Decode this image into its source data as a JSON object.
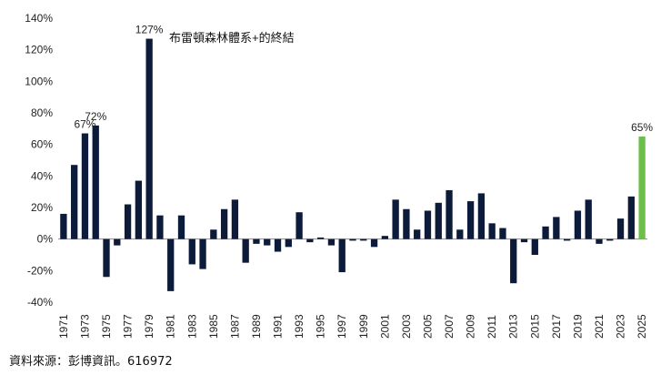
{
  "chart_data": {
    "type": "bar",
    "x": [
      "1971",
      "1972",
      "1973",
      "1974",
      "1975",
      "1976",
      "1977",
      "1978",
      "1979",
      "1980",
      "1981",
      "1982",
      "1983",
      "1984",
      "1985",
      "1986",
      "1987",
      "1988",
      "1989",
      "1990",
      "1991",
      "1992",
      "1993",
      "1994",
      "1995",
      "1996",
      "1997",
      "1998",
      "1999",
      "2000",
      "2001",
      "2002",
      "2003",
      "2004",
      "2005",
      "2006",
      "2007",
      "2008",
      "2009",
      "2010",
      "2011",
      "2012",
      "2013",
      "2014",
      "2015",
      "2016",
      "2017",
      "2018",
      "2019",
      "2020",
      "2021",
      "2022",
      "2023",
      "2024",
      "2025"
    ],
    "x_tick_labels": [
      "1971",
      "1973",
      "1975",
      "1977",
      "1979",
      "1981",
      "1983",
      "1985",
      "1987",
      "1989",
      "1991",
      "1993",
      "1995",
      "1997",
      "1999",
      "2001",
      "2003",
      "2005",
      "2007",
      "2009",
      "2011",
      "2013",
      "2015",
      "2017",
      "2019",
      "2021",
      "2023",
      "2025"
    ],
    "values": [
      16,
      47,
      67,
      72,
      -24,
      -4,
      22,
      37,
      127,
      15,
      -33,
      15,
      -16,
      -19,
      6,
      19,
      25,
      -15,
      -3,
      -4,
      -8,
      -5,
      17,
      -2,
      1,
      -4,
      -21,
      -1,
      -1,
      -5,
      2,
      25,
      19,
      6,
      18,
      23,
      31,
      6,
      24,
      29,
      10,
      7,
      -28,
      -2,
      -10,
      8,
      14,
      -1,
      18,
      25,
      -3,
      -1,
      13,
      27,
      65
    ],
    "ylim": [
      -40,
      140
    ],
    "yticks": [
      -40,
      -20,
      0,
      20,
      40,
      60,
      80,
      100,
      120,
      140
    ],
    "ytick_format": "%",
    "gridlines": false,
    "data_labels": [
      {
        "year": "1973",
        "text": "67%"
      },
      {
        "year": "1974",
        "text": "72%"
      },
      {
        "year": "1979",
        "text": "127%"
      },
      {
        "year": "2025",
        "text": "65%"
      }
    ],
    "annotation": "布雷頓森林體系+的終結",
    "colors": {
      "bar": "#0d1b3a",
      "highlight": "#6cc04a",
      "zero_line": "#888888"
    },
    "highlight_year": "2025"
  },
  "source_note": "資料來源：彭博資訊。616972"
}
